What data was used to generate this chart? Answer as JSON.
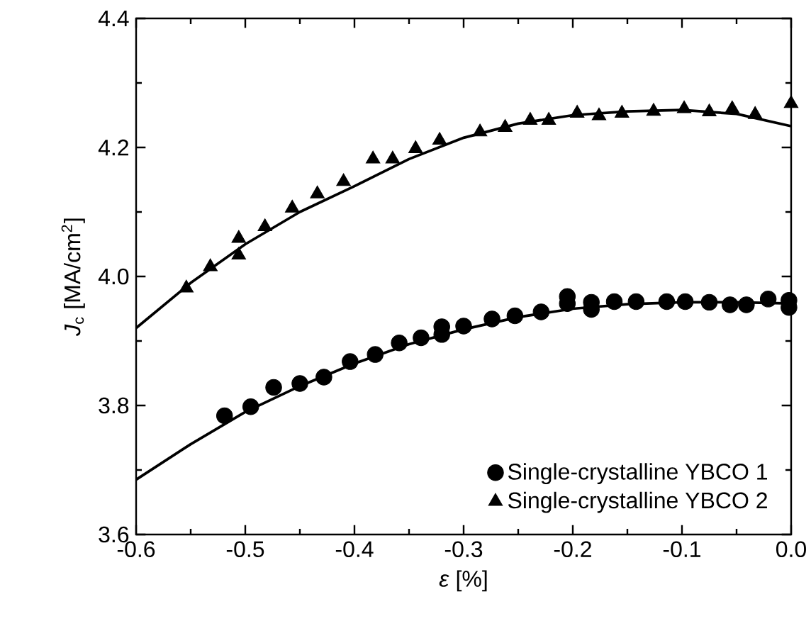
{
  "chart_data": {
    "type": "scatter",
    "xlabel": "*ε* [%]",
    "ylabel": "*J*$_{c}$ [MA/cm$^{2}$]",
    "xlim": [
      -0.6,
      0.0
    ],
    "ylim": [
      3.6,
      4.4
    ],
    "xticks": [
      -0.6,
      -0.5,
      -0.4,
      -0.3,
      -0.2,
      -0.1,
      {
        "value": 0.0,
        "label": "0.0"
      }
    ],
    "yticks": [
      3.6,
      3.8,
      {
        "value": 4.0,
        "label": "4.0"
      },
      4.2,
      4.4
    ],
    "legend": "bottom right",
    "grid": false,
    "series": [
      {
        "name": "Single-crystalline YBCO 1",
        "color": "#000000",
        "marker": "circle",
        "x": [
          -0.519,
          -0.495,
          -0.474,
          -0.45,
          -0.428,
          -0.404,
          -0.381,
          -0.359,
          -0.339,
          -0.32,
          -0.32,
          -0.3,
          -0.274,
          -0.253,
          -0.229,
          -0.205,
          -0.205,
          -0.183,
          -0.183,
          -0.162,
          -0.142,
          -0.114,
          -0.097,
          -0.075,
          -0.056,
          -0.041,
          -0.021,
          -0.002,
          -0.002
        ],
        "values": [
          3.784,
          3.798,
          3.828,
          3.834,
          3.844,
          3.868,
          3.879,
          3.897,
          3.905,
          3.922,
          3.91,
          3.923,
          3.934,
          3.939,
          3.945,
          3.969,
          3.958,
          3.96,
          3.949,
          3.961,
          3.961,
          3.961,
          3.961,
          3.96,
          3.956,
          3.956,
          3.965,
          3.963,
          3.952
        ]
      },
      {
        "name": "Single-crystalline YBCO 2",
        "color": "#000000",
        "marker": "triangle",
        "x": [
          -0.554,
          -0.532,
          -0.506,
          -0.506,
          -0.482,
          -0.457,
          -0.434,
          -0.41,
          -0.383,
          -0.365,
          -0.344,
          -0.322,
          -0.285,
          -0.262,
          -0.239,
          -0.222,
          -0.196,
          -0.176,
          -0.155,
          -0.126,
          -0.098,
          -0.075,
          -0.054,
          -0.033,
          0.0
        ],
        "values": [
          3.982,
          4.015,
          4.059,
          4.033,
          4.077,
          4.106,
          4.128,
          4.147,
          4.182,
          4.182,
          4.198,
          4.211,
          4.224,
          4.231,
          4.242,
          4.242,
          4.253,
          4.249,
          4.253,
          4.256,
          4.26,
          4.255,
          4.26,
          4.251,
          4.268
        ]
      },
      {
        "type": "line",
        "color": "#000000",
        "line_style": "solid",
        "x": [
          -0.6,
          -0.55,
          -0.5,
          -0.45,
          -0.4,
          -0.35,
          -0.3,
          -0.25,
          -0.2,
          -0.15,
          -0.1,
          -0.05,
          0.0
        ],
        "values": [
          3.685,
          3.74,
          3.79,
          3.83,
          3.865,
          3.895,
          3.918,
          3.937,
          3.95,
          3.957,
          3.96,
          3.96,
          3.958
        ]
      },
      {
        "type": "line",
        "color": "#000000",
        "line_style": "solid",
        "x": [
          -0.6,
          -0.55,
          -0.5,
          -0.45,
          -0.4,
          -0.35,
          -0.3,
          -0.25,
          -0.2,
          -0.15,
          -0.1,
          -0.05,
          0.0
        ],
        "values": [
          3.92,
          3.99,
          4.05,
          4.1,
          4.14,
          4.182,
          4.215,
          4.237,
          4.25,
          4.256,
          4.258,
          4.252,
          4.233
        ]
      }
    ]
  }
}
